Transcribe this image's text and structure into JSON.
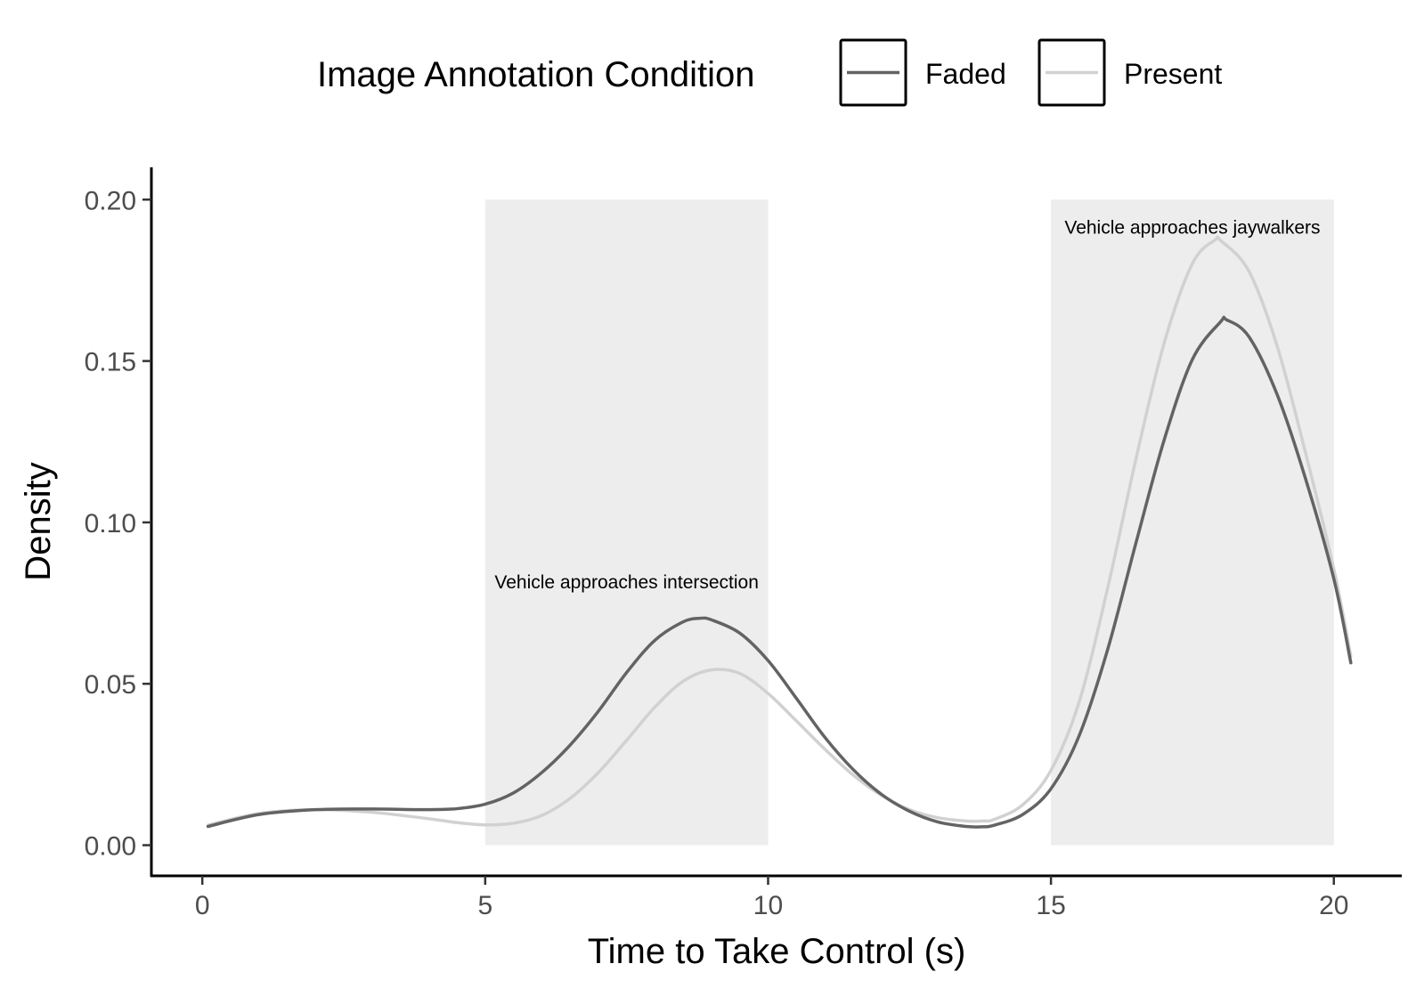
{
  "chart_data": {
    "type": "line",
    "title": "",
    "xlabel": "Time to Take Control (s)",
    "ylabel": "Density",
    "xlim": [
      -0.9,
      21.2
    ],
    "ylim": [
      -0.0095,
      0.21
    ],
    "xticks": [
      0,
      5,
      10,
      15,
      20
    ],
    "xtick_labels": [
      "0",
      "5",
      "10",
      "15",
      "20"
    ],
    "yticks": [
      0.0,
      0.05,
      0.1,
      0.15,
      0.2
    ],
    "ytick_labels": [
      "0.00",
      "0.05",
      "0.10",
      "0.15",
      "0.20"
    ],
    "grid": false,
    "legend": {
      "title": "Image Annotation Condition",
      "position": "top",
      "entries": [
        "Faded",
        "Present"
      ]
    },
    "shaded_regions": [
      {
        "x0": 5,
        "x1": 10,
        "y0": 0,
        "y1": 0.2,
        "color": "#ededed",
        "label": "Vehicle approaches intersection",
        "label_x": 7.5,
        "label_y": 0.0795
      },
      {
        "x0": 15,
        "x1": 20,
        "y0": 0,
        "y1": 0.2,
        "color": "#ededed",
        "label": "Vehicle approaches jaywalkers",
        "label_x": 17.5,
        "label_y": 0.1895
      }
    ],
    "series": [
      {
        "name": "Faded",
        "color": "#636363",
        "x": [
          0.1,
          1,
          2,
          3,
          4,
          4.5,
          5,
          5.5,
          6,
          6.5,
          7,
          7.5,
          8,
          8.5,
          8.8,
          9,
          9.5,
          10,
          10.5,
          11,
          11.5,
          12,
          12.5,
          13,
          13.5,
          13.8,
          14,
          14.5,
          15,
          15.5,
          16,
          16.5,
          17,
          17.5,
          18,
          18.1,
          18.5,
          19,
          19.5,
          20,
          20.3
        ],
        "y": [
          0.0058,
          0.0095,
          0.011,
          0.0112,
          0.011,
          0.0113,
          0.0127,
          0.0162,
          0.0225,
          0.031,
          0.0415,
          0.0535,
          0.0635,
          0.0692,
          0.0703,
          0.0698,
          0.0657,
          0.0572,
          0.0455,
          0.0335,
          0.0235,
          0.0158,
          0.0105,
          0.0072,
          0.0058,
          0.0057,
          0.0062,
          0.0095,
          0.0175,
          0.034,
          0.0605,
          0.0935,
          0.1255,
          0.1505,
          0.1622,
          0.1628,
          0.1575,
          0.1395,
          0.1135,
          0.0825,
          0.0565
        ]
      },
      {
        "name": "Present",
        "color": "#d1d1d1",
        "x": [
          0.1,
          1,
          2,
          3,
          4,
          4.5,
          5,
          5.5,
          6,
          6.5,
          7,
          7.5,
          8,
          8.5,
          9,
          9.5,
          10,
          10.5,
          11,
          11.5,
          12,
          12.5,
          13,
          13.5,
          13.8,
          14,
          14.5,
          15,
          15.5,
          16,
          16.5,
          17,
          17.5,
          17.9,
          18,
          18.5,
          19,
          19.5,
          20,
          20.3
        ],
        "y": [
          0.0062,
          0.0098,
          0.011,
          0.0102,
          0.0082,
          0.007,
          0.0063,
          0.0068,
          0.0092,
          0.0145,
          0.0225,
          0.0325,
          0.0428,
          0.0508,
          0.0543,
          0.0532,
          0.047,
          0.0385,
          0.0298,
          0.0218,
          0.0155,
          0.011,
          0.0085,
          0.0075,
          0.0075,
          0.008,
          0.0125,
          0.0232,
          0.0445,
          0.0795,
          0.1195,
          0.1555,
          0.1802,
          0.1875,
          0.1873,
          0.1778,
          0.1545,
          0.1215,
          0.0855,
          0.0585
        ]
      }
    ]
  }
}
